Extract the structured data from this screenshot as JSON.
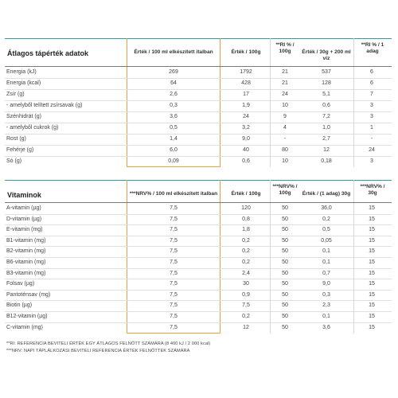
{
  "nutrition": {
    "title": "Átlagos tápérték adatok",
    "headers": [
      "Érték / 100 ml elkészített italban",
      "Érték / 100g",
      "**RI % / 100g",
      "Érték / 30g + 200 ml víz",
      "**RI % / 1 adag"
    ],
    "rows": [
      {
        "label": "Energia (kJ)",
        "values": [
          "269",
          "1792",
          "21",
          "537",
          "6"
        ]
      },
      {
        "label": "Energia (kcal)",
        "values": [
          "64",
          "428",
          "21",
          "128",
          "6"
        ]
      },
      {
        "label": "Zsír (g)",
        "values": [
          "2,6",
          "17",
          "24",
          "5,1",
          "7"
        ]
      },
      {
        "label": "- amelyből telített zsírsavak (g)",
        "values": [
          "0,3",
          "1,9",
          "10",
          "0,6",
          "3"
        ]
      },
      {
        "label": "Szénhidrát (g)",
        "values": [
          "3,6",
          "24",
          "9",
          "7,2",
          "3"
        ]
      },
      {
        "label": "- amelyből cukrok (g)",
        "values": [
          "0,5",
          "3,2",
          "4",
          "1,0",
          "1"
        ]
      },
      {
        "label": "Rost (g)",
        "values": [
          "1,4",
          "9,0",
          "-",
          "2,7",
          "-"
        ]
      },
      {
        "label": "Fehérje (g)",
        "values": [
          "6,0",
          "40",
          "80",
          "12",
          "24"
        ]
      },
      {
        "label": "Só (g)",
        "values": [
          "0,09",
          "0,6",
          "10",
          "0,18",
          "3"
        ]
      }
    ]
  },
  "vitamins": {
    "title": "Vitaminok",
    "headers": [
      "***NRV% / 100 ml elkészített italban",
      "Érték / 100g",
      "***NRV% / 100g",
      "Érték / (1 adag) 30g",
      "***NRV% / 30g"
    ],
    "rows": [
      {
        "label": "A-vitamin (µg)",
        "values": [
          "7,5",
          "120",
          "50",
          "36,0",
          "15"
        ]
      },
      {
        "label": "D-vitamin (µg)",
        "values": [
          "7,5",
          "0,8",
          "50",
          "0,2",
          "15"
        ]
      },
      {
        "label": "E-vitamin (mg)",
        "values": [
          "7,5",
          "1,8",
          "50",
          "0,5",
          "15"
        ]
      },
      {
        "label": "B1-vitamin (mg)",
        "values": [
          "7,5",
          "0,2",
          "50",
          "0,05",
          "15"
        ]
      },
      {
        "label": "B2-vitamin (mg)",
        "values": [
          "7,5",
          "0,2",
          "50",
          "0,1",
          "15"
        ]
      },
      {
        "label": "B6-vitamin (mg)",
        "values": [
          "7,5",
          "0,2",
          "50",
          "0,1",
          "15"
        ]
      },
      {
        "label": "B3-vitamin (mg)",
        "values": [
          "7,5",
          "2,4",
          "50",
          "0,7",
          "15"
        ]
      },
      {
        "label": "Folsav (µg)",
        "values": [
          "7,5",
          "30",
          "50",
          "9,0",
          "15"
        ]
      },
      {
        "label": "Pantoténsav (mg)",
        "values": [
          "7,5",
          "0,9",
          "50",
          "0,3",
          "15"
        ]
      },
      {
        "label": "Biotin (µg)",
        "values": [
          "7,5",
          "7,5",
          "50",
          "2,3",
          "15"
        ]
      },
      {
        "label": "B12-vitamin (µg)",
        "values": [
          "7,5",
          "0,2",
          "50",
          "0,1",
          "15"
        ]
      },
      {
        "label": "C-vitamin (mg)",
        "values": [
          "7,5",
          "12",
          "50",
          "3,6",
          "15"
        ]
      }
    ]
  },
  "footnotes": [
    "**RI: REFERENCIA BEVITELI ÉRTÉK EGY ÁTLAGOS FELNŐTT SZÁMÁRA (8 400 kJ / 2 000 kcal)",
    "***NRV: NAPI TÁPLÁLKOZÁSI BEVITELI REFERENCIA ÉRTÉK FELNŐTTEK SZÁMÁRA"
  ],
  "colors": {
    "accent_teal": "#2f9e9e",
    "highlight_orange": "#e8a23a"
  }
}
